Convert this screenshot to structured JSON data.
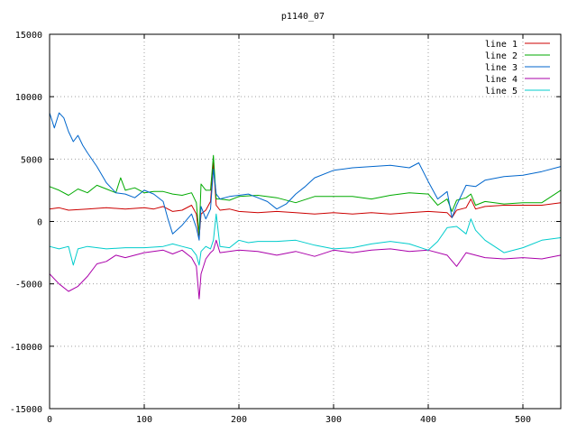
{
  "chart_data": {
    "type": "line",
    "title": "p1140_07",
    "xlabel": "",
    "ylabel": "",
    "xlim": [
      0,
      540
    ],
    "ylim": [
      -15000,
      15000
    ],
    "xticks": [
      0,
      100,
      200,
      300,
      400,
      500
    ],
    "yticks": [
      -15000,
      -10000,
      -5000,
      0,
      5000,
      10000,
      15000
    ],
    "xtick_labels": [
      "0",
      "100",
      "200",
      "300",
      "400",
      "500"
    ],
    "ytick_labels": [
      "-15000",
      "-10000",
      "-5000",
      "0",
      "5000",
      "10000",
      "15000"
    ],
    "grid": true,
    "legend_position": "top-right",
    "series": [
      {
        "name": "line 1",
        "color": "#cc0000",
        "x": [
          0,
          10,
          20,
          40,
          60,
          80,
          100,
          110,
          120,
          130,
          140,
          150,
          155,
          158,
          160,
          165,
          170,
          173,
          176,
          180,
          190,
          200,
          220,
          240,
          260,
          280,
          300,
          320,
          340,
          360,
          380,
          400,
          420,
          425,
          430,
          440,
          445,
          450,
          460,
          480,
          500,
          520,
          540
        ],
        "y": [
          1000,
          1100,
          900,
          1000,
          1100,
          1000,
          1100,
          1000,
          1200,
          800,
          900,
          1300,
          600,
          -1300,
          600,
          900,
          1600,
          4700,
          1300,
          900,
          1000,
          800,
          700,
          800,
          700,
          600,
          700,
          600,
          700,
          600,
          700,
          800,
          700,
          300,
          900,
          1100,
          1800,
          1000,
          1200,
          1300,
          1300,
          1300,
          1500
        ]
      },
      {
        "name": "line 2",
        "color": "#00aa00",
        "x": [
          0,
          10,
          20,
          30,
          40,
          50,
          60,
          70,
          75,
          80,
          90,
          100,
          110,
          120,
          130,
          140,
          150,
          155,
          158,
          160,
          165,
          170,
          173,
          176,
          180,
          190,
          200,
          220,
          240,
          260,
          280,
          300,
          320,
          340,
          360,
          380,
          400,
          410,
          420,
          425,
          430,
          440,
          445,
          450,
          460,
          480,
          500,
          520,
          540
        ],
        "y": [
          2800,
          2500,
          2100,
          2600,
          2300,
          2900,
          2600,
          2300,
          3500,
          2500,
          2700,
          2300,
          2400,
          2400,
          2200,
          2100,
          2300,
          1500,
          -1100,
          3000,
          2500,
          2500,
          5300,
          1800,
          1800,
          1700,
          2000,
          2100,
          1900,
          1500,
          2000,
          2000,
          2000,
          1800,
          2100,
          2300,
          2200,
          1300,
          1800,
          800,
          1700,
          1900,
          2200,
          1300,
          1600,
          1400,
          1500,
          1500,
          2500
        ]
      },
      {
        "name": "line 3",
        "color": "#0066cc",
        "x": [
          0,
          5,
          10,
          15,
          20,
          25,
          30,
          35,
          40,
          50,
          60,
          70,
          80,
          90,
          100,
          110,
          120,
          125,
          130,
          140,
          150,
          155,
          158,
          160,
          165,
          170,
          173,
          176,
          180,
          190,
          200,
          210,
          220,
          230,
          240,
          250,
          260,
          270,
          280,
          300,
          320,
          340,
          360,
          380,
          390,
          400,
          410,
          420,
          425,
          430,
          440,
          450,
          460,
          480,
          500,
          520,
          540
        ],
        "y": [
          8700,
          7500,
          8700,
          8300,
          7200,
          6400,
          6900,
          6100,
          5500,
          4400,
          3100,
          2300,
          2200,
          1900,
          2500,
          2200,
          1600,
          200,
          -1000,
          -300,
          600,
          -500,
          -1500,
          1200,
          200,
          1000,
          4200,
          2200,
          1800,
          2000,
          2100,
          2200,
          1900,
          1600,
          1000,
          1400,
          2200,
          2800,
          3500,
          4100,
          4300,
          4400,
          4500,
          4300,
          4700,
          3200,
          1800,
          2400,
          300,
          1300,
          2900,
          2800,
          3300,
          3600,
          3700,
          4000,
          4400
        ]
      },
      {
        "name": "line 4",
        "color": "#aa00aa",
        "x": [
          0,
          10,
          20,
          30,
          40,
          50,
          60,
          70,
          80,
          100,
          120,
          130,
          140,
          150,
          155,
          158,
          160,
          165,
          170,
          173,
          176,
          180,
          200,
          220,
          240,
          260,
          280,
          300,
          320,
          340,
          360,
          380,
          400,
          420,
          430,
          440,
          460,
          480,
          500,
          520,
          540
        ],
        "y": [
          -4200,
          -5000,
          -5600,
          -5200,
          -4400,
          -3400,
          -3200,
          -2700,
          -2900,
          -2500,
          -2300,
          -2600,
          -2300,
          -2900,
          -3600,
          -6200,
          -4200,
          -3000,
          -2500,
          -2300,
          -1500,
          -2500,
          -2300,
          -2400,
          -2700,
          -2400,
          -2800,
          -2300,
          -2500,
          -2300,
          -2200,
          -2400,
          -2300,
          -2700,
          -3600,
          -2500,
          -2900,
          -3000,
          -2900,
          -3000,
          -2700
        ]
      },
      {
        "name": "line 5",
        "color": "#00cccc",
        "x": [
          0,
          10,
          20,
          25,
          30,
          40,
          60,
          80,
          100,
          120,
          130,
          140,
          150,
          155,
          158,
          160,
          165,
          170,
          173,
          176,
          180,
          190,
          200,
          210,
          220,
          240,
          260,
          280,
          300,
          320,
          340,
          360,
          380,
          400,
          410,
          420,
          430,
          440,
          445,
          450,
          460,
          480,
          500,
          520,
          540
        ],
        "y": [
          -2000,
          -2200,
          -2000,
          -3500,
          -2200,
          -2000,
          -2200,
          -2100,
          -2100,
          -2000,
          -1800,
          -2000,
          -2200,
          -2700,
          -3500,
          -2400,
          -2000,
          -2200,
          -1500,
          600,
          -2000,
          -2100,
          -1500,
          -1700,
          -1600,
          -1600,
          -1500,
          -1900,
          -2200,
          -2100,
          -1800,
          -1600,
          -1800,
          -2300,
          -1600,
          -500,
          -400,
          -1000,
          200,
          -700,
          -1500,
          -2500,
          -2100,
          -1500,
          -1300
        ]
      }
    ]
  }
}
